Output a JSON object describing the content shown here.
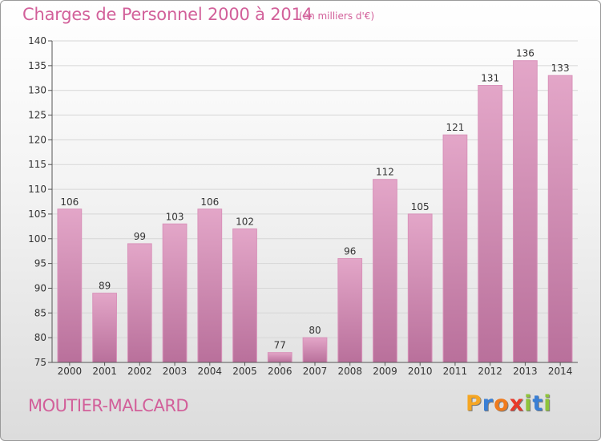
{
  "header": {
    "title": "Charges de Personnel 2000 à 2014",
    "subtitle": "(en milliers d'€)"
  },
  "footer": {
    "town": "MOUTIER-MALCARD",
    "logo_text": "Proxiti",
    "logo_colors": [
      "#f5a623",
      "#3a7fd5",
      "#f07b1d",
      "#e8392a",
      "#8fc43b",
      "#3a7fd5",
      "#8fc43b"
    ]
  },
  "colors": {
    "bar_top": "#e3a6c8",
    "bar_bottom": "#b9709b",
    "bar_edge": "#d992ba",
    "grid": "#d6d6d6",
    "title": "#d2609a"
  },
  "chart_data": {
    "type": "bar",
    "title": "Charges de Personnel 2000 à 2014",
    "subtitle": "(en milliers d'€)",
    "categories": [
      "2000",
      "2001",
      "2002",
      "2003",
      "2004",
      "2005",
      "2006",
      "2007",
      "2008",
      "2009",
      "2010",
      "2011",
      "2012",
      "2013",
      "2014"
    ],
    "values": [
      106,
      89,
      99,
      103,
      106,
      102,
      77,
      80,
      96,
      112,
      105,
      121,
      131,
      136,
      133
    ],
    "ylim": [
      75,
      140
    ],
    "yticks": [
      75,
      80,
      85,
      90,
      95,
      100,
      105,
      110,
      115,
      120,
      125,
      130,
      135,
      140
    ],
    "grid": true,
    "data_labels": true
  }
}
